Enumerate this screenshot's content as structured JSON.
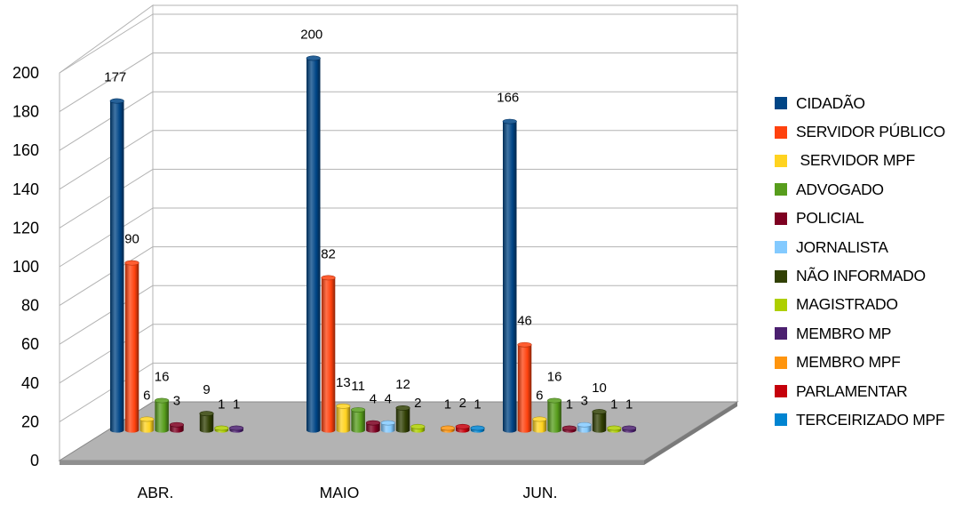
{
  "chart_data": {
    "type": "bar",
    "title": "",
    "xlabel": "",
    "ylabel": "",
    "ylim": [
      0,
      200
    ],
    "yticks": [
      0,
      20,
      40,
      60,
      80,
      100,
      120,
      140,
      160,
      180,
      200
    ],
    "grid": true,
    "legend_position": "right",
    "categories": [
      "ABR.",
      "MAIO",
      "JUN."
    ],
    "series": [
      {
        "name": "CIDADÃO",
        "color": "#004586",
        "values": [
          177,
          200,
          166
        ],
        "labels": [
          "177",
          "200",
          "166"
        ]
      },
      {
        "name": "SERVIDOR PÚBLICO",
        "color": "#ff420e",
        "values": [
          90,
          82,
          46
        ],
        "labels": [
          "90",
          "82",
          "46"
        ]
      },
      {
        "name": " SERVIDOR MPF",
        "color": "#ffd320",
        "values": [
          6,
          13,
          6
        ],
        "labels": [
          "6",
          "13",
          "6"
        ]
      },
      {
        "name": "ADVOGADO",
        "color": "#579d1c",
        "values": [
          16,
          11,
          16
        ],
        "labels": [
          "16",
          "11",
          "16"
        ]
      },
      {
        "name": "POLICIAL",
        "color": "#7e0021",
        "values": [
          3,
          4,
          1
        ],
        "labels": [
          "3",
          "4",
          "1"
        ]
      },
      {
        "name": "JORNALISTA",
        "color": "#83caff",
        "values": [
          null,
          4,
          3
        ],
        "labels": [
          null,
          "4",
          "3"
        ]
      },
      {
        "name": "NÃO INFORMADO",
        "color": "#314004",
        "values": [
          9,
          12,
          10
        ],
        "labels": [
          "9",
          "12",
          "10"
        ]
      },
      {
        "name": "MAGISTRADO",
        "color": "#aecf00",
        "values": [
          1,
          2,
          1
        ],
        "labels": [
          "1",
          "2",
          "1"
        ]
      },
      {
        "name": "MEMBRO MP",
        "color": "#4b1f6f",
        "values": [
          1,
          null,
          1
        ],
        "labels": [
          "1",
          null,
          "1"
        ]
      },
      {
        "name": "MEMBRO MPF",
        "color": "#ff950e",
        "values": [
          null,
          1,
          null
        ],
        "labels": [
          null,
          "1",
          null
        ]
      },
      {
        "name": "PARLAMENTAR",
        "color": "#c5000b",
        "values": [
          null,
          2,
          null
        ],
        "labels": [
          null,
          "2",
          null
        ]
      },
      {
        "name": "TERCEIRIZADO MPF",
        "color": "#0084d1",
        "values": [
          null,
          1,
          null
        ],
        "labels": [
          null,
          "1",
          null
        ]
      }
    ]
  }
}
